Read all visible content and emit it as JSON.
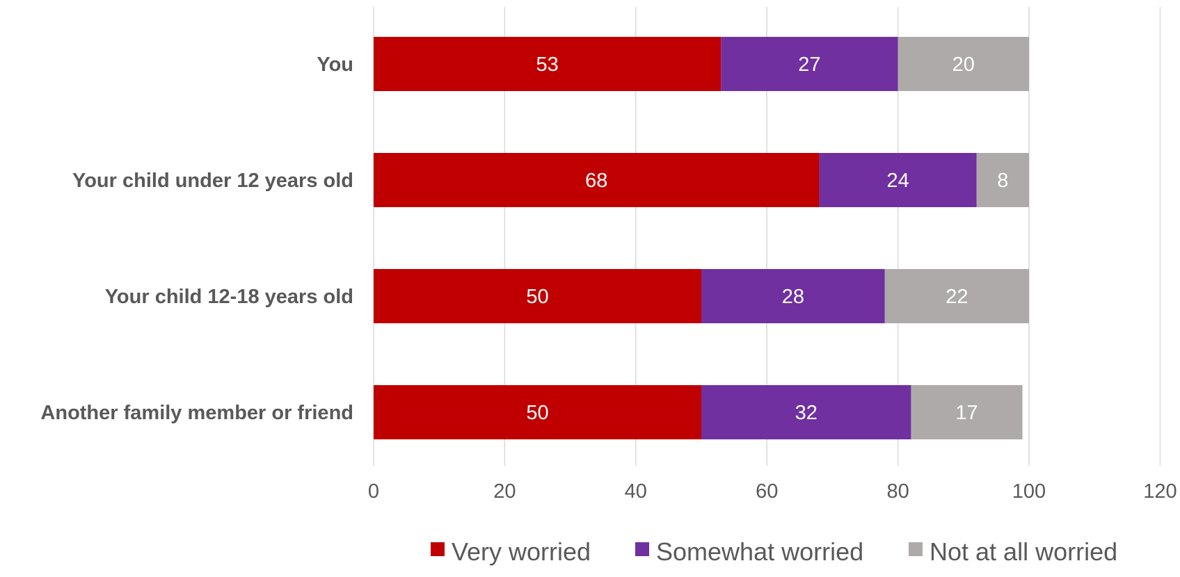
{
  "chart_data": {
    "type": "bar",
    "orientation": "horizontal",
    "stacked": true,
    "categories": [
      "You",
      "Your child under 12 years old",
      "Your child 12-18 years old",
      "Another family member or friend"
    ],
    "series": [
      {
        "name": "Very worried",
        "color": "#c00000",
        "values": [
          53,
          68,
          50,
          50
        ],
        "labels": [
          "53",
          "68",
          "50",
          "50"
        ]
      },
      {
        "name": "Somewhat worried",
        "color": "#7030a0",
        "values": [
          27,
          24,
          28,
          32
        ],
        "labels": [
          "27",
          "24",
          "28",
          "32"
        ]
      },
      {
        "name": "Not at all worried",
        "color": "#aeaaaa",
        "values": [
          20,
          8,
          22,
          17
        ],
        "labels": [
          "20",
          "8",
          "22",
          "17"
        ]
      }
    ],
    "x_ticks": [
      "0",
      "20",
      "40",
      "60",
      "80",
      "100",
      "120"
    ],
    "xlim": [
      0,
      120
    ],
    "grid": true,
    "legend": "bottom",
    "title": "",
    "xlabel": "",
    "ylabel": ""
  }
}
